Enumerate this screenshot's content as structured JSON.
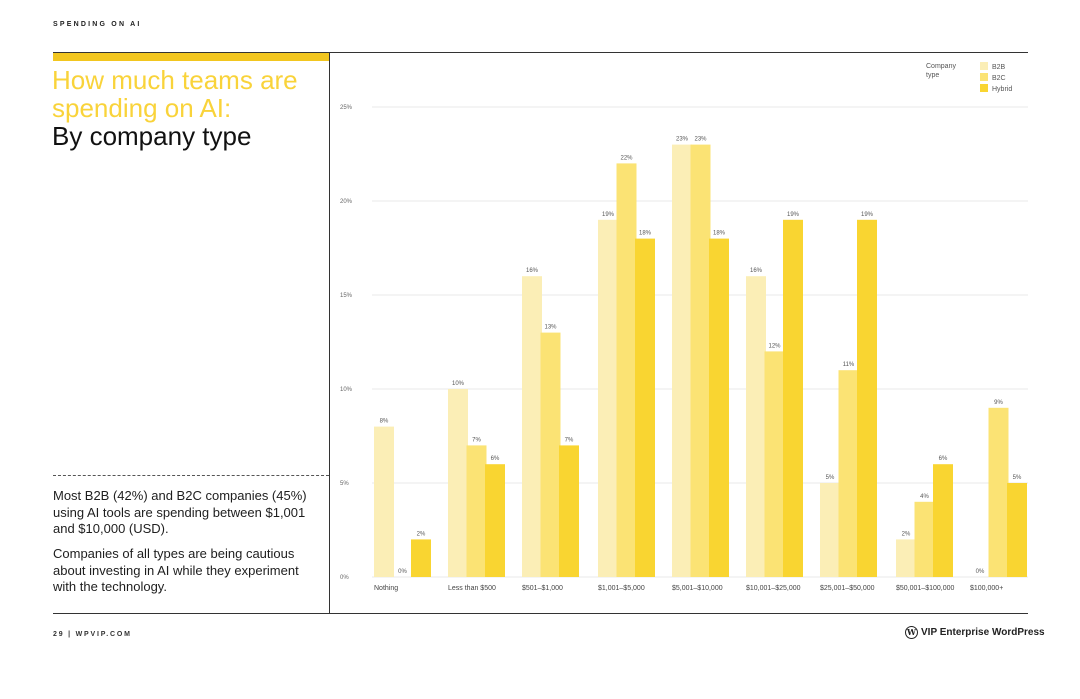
{
  "header": {
    "section": "SPENDING ON AI"
  },
  "title": {
    "line_yellow": "How much teams are spending on AI:",
    "line_black": "By company type"
  },
  "body": {
    "para1": "Most B2B (42%) and B2C companies (45%) using AI tools are spending between $1,001 and $10,000 (USD).",
    "para2": "Companies of all types are being cautious about investing in AI while they experiment with the technology."
  },
  "footer": {
    "page": "29   |   WPVIP.COM",
    "brand": "VIP  Enterprise WordPress"
  },
  "colors": {
    "b2b": "#fbeeb6",
    "b2c": "#fbe374",
    "hybrid": "#f9d531",
    "accent": "#f2c61f"
  },
  "chart_data": {
    "type": "bar",
    "legend_title": "Company type",
    "legend_position": "top-right",
    "categories": [
      "Nothing",
      "Less than $500",
      "$501–$1,000",
      "$1,001–$5,000",
      "$5,001–$10,000",
      "$10,001–$25,000",
      "$25,001–$50,000",
      "$50,001–$100,000",
      "$100,000+"
    ],
    "series": [
      {
        "name": "B2B",
        "values": [
          8,
          10,
          16,
          19,
          23,
          16,
          5,
          2,
          0
        ]
      },
      {
        "name": "B2C",
        "values": [
          0,
          7,
          13,
          22,
          23,
          12,
          11,
          4,
          9
        ]
      },
      {
        "name": "Hybrid",
        "values": [
          2,
          6,
          7,
          18,
          18,
          19,
          19,
          6,
          5
        ]
      }
    ],
    "ylim": [
      0,
      25
    ],
    "yticks": [
      "0%",
      "5%",
      "10%",
      "15%",
      "20%",
      "25%"
    ],
    "value_suffix": "%",
    "grid": true
  }
}
